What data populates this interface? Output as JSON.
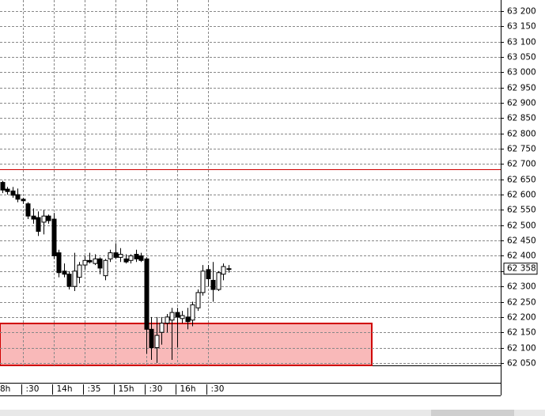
{
  "chart_data": {
    "type": "candlestick",
    "categories": [
      null,
      null,
      null,
      null,
      ":30",
      null,
      null,
      null,
      null,
      null,
      "14h",
      null,
      null,
      null,
      null,
      null,
      ":35",
      null,
      null,
      null,
      null,
      null,
      "15h",
      null,
      null,
      null,
      null,
      null,
      ":30",
      null,
      null,
      null,
      null,
      null,
      "16h",
      null,
      null,
      null,
      null,
      null,
      ":30",
      null,
      null,
      null,
      null
    ],
    "leading_label": "8h",
    "open": [
      62640,
      62618,
      62612,
      62600,
      62585,
      62570,
      62530,
      62525,
      62510,
      62530,
      62520,
      62410,
      62350,
      62340,
      62300,
      62330,
      62370,
      62385,
      62375,
      62390,
      62335,
      62390,
      62410,
      62395,
      62390,
      62385,
      62405,
      62400,
      62390,
      62160,
      62100,
      62150,
      62180,
      62190,
      62215,
      62195,
      62200,
      62190,
      62230,
      62280,
      62355,
      62320,
      62290,
      62340,
      62358
    ],
    "high": [
      62645,
      62625,
      62625,
      62620,
      62590,
      62575,
      62555,
      62545,
      62550,
      62535,
      62540,
      62420,
      62375,
      62350,
      62410,
      62380,
      62400,
      62410,
      62405,
      62395,
      62390,
      62420,
      62440,
      62425,
      62405,
      62405,
      62420,
      62410,
      62395,
      62200,
      62200,
      62200,
      62210,
      62230,
      62230,
      62220,
      62230,
      62250,
      62290,
      62370,
      62370,
      62380,
      62350,
      62375,
      62370
    ],
    "low": [
      62605,
      62600,
      62590,
      62575,
      62570,
      62520,
      62505,
      62465,
      62470,
      62505,
      62390,
      62330,
      62330,
      62290,
      62285,
      62310,
      62355,
      62375,
      62370,
      62340,
      62320,
      62380,
      62390,
      62380,
      62375,
      62375,
      62380,
      62380,
      62080,
      62060,
      62050,
      62110,
      62150,
      62060,
      62100,
      62180,
      62160,
      62170,
      62220,
      62270,
      62300,
      62250,
      62285,
      62320,
      62345
    ],
    "close": [
      62615,
      62610,
      62598,
      62585,
      62580,
      62530,
      62520,
      62480,
      62530,
      62515,
      62400,
      62345,
      62340,
      62300,
      62350,
      62370,
      62385,
      62380,
      62390,
      62360,
      62385,
      62410,
      62395,
      62405,
      62380,
      62400,
      62390,
      62385,
      62160,
      62100,
      62140,
      62180,
      62200,
      62215,
      62200,
      62205,
      62185,
      62240,
      62280,
      62350,
      62325,
      62290,
      62345,
      62365,
      62358
    ],
    "ylim": [
      62042,
      63236
    ],
    "yticks": [
      {
        "value": 62050,
        "label": "62 050"
      },
      {
        "value": 62100,
        "label": "62 100"
      },
      {
        "value": 62150,
        "label": "62 150"
      },
      {
        "value": 62200,
        "label": "62 200"
      },
      {
        "value": 62250,
        "label": "62 250"
      },
      {
        "value": 62300,
        "label": "62 300"
      },
      {
        "value": 62350,
        "label": "62 350"
      },
      {
        "value": 62400,
        "label": "62 400"
      },
      {
        "value": 62450,
        "label": "62 450"
      },
      {
        "value": 62500,
        "label": "62 500"
      },
      {
        "value": 62550,
        "label": "62 550"
      },
      {
        "value": 62600,
        "label": "62 600"
      },
      {
        "value": 62650,
        "label": "62 650"
      },
      {
        "value": 62700,
        "label": "62 700"
      },
      {
        "value": 62750,
        "label": "62 750"
      },
      {
        "value": 62800,
        "label": "62 800"
      },
      {
        "value": 62850,
        "label": "62 850"
      },
      {
        "value": 62900,
        "label": "62 900"
      },
      {
        "value": 62950,
        "label": "62 950"
      },
      {
        "value": 63000,
        "label": "63 000"
      },
      {
        "value": 63050,
        "label": "63 050"
      },
      {
        "value": 63100,
        "label": "63 100"
      },
      {
        "value": 63150,
        "label": "63 150"
      },
      {
        "value": 63200,
        "label": "63 200"
      }
    ],
    "last_price": {
      "value": 62358,
      "label": "62 358"
    },
    "level_line": 62683,
    "zone_top": 62179,
    "grid": true,
    "up_color": "#ffffff",
    "down_color": "#000000",
    "level_color": "#d00000",
    "zone_color": "#f9b9b9"
  }
}
